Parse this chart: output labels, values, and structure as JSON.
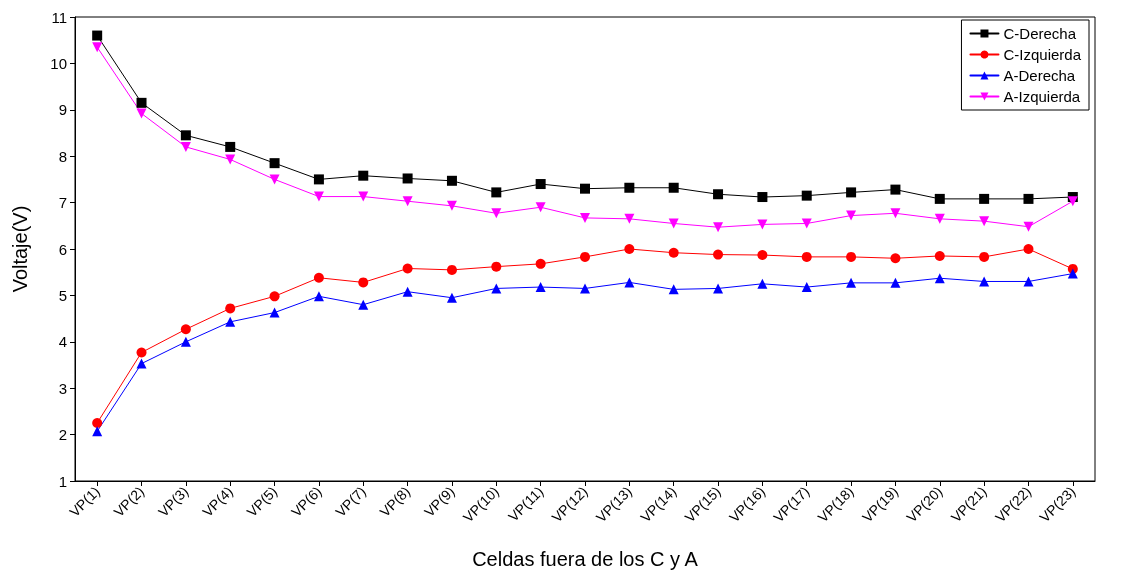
{
  "chart_data": {
    "type": "line",
    "xlabel": "Celdas fuera de los C y A",
    "ylabel": "Voltaje(V)",
    "categories": [
      "VP(1)",
      "VP(2)",
      "VP(3)",
      "VP(4)",
      "VP(5)",
      "VP(6)",
      "VP(7)",
      "VP(8)",
      "VP(9)",
      "VP(10)",
      "VP(11)",
      "VP(12)",
      "VP(13)",
      "VP(14)",
      "VP(15)",
      "VP(16)",
      "VP(17)",
      "VP(18)",
      "VP(19)",
      "VP(20)",
      "VP(21)",
      "VP(22)",
      "VP(23)"
    ],
    "ylim": [
      1,
      11
    ],
    "yticks": [
      1,
      2,
      3,
      4,
      5,
      6,
      7,
      8,
      9,
      10,
      11
    ],
    "grid": false,
    "legend": "top right",
    "line_style": "solid",
    "series": [
      {
        "name": "C-Derecha",
        "color": "#000000",
        "marker": "square",
        "values": [
          10.6,
          9.15,
          8.45,
          8.2,
          7.85,
          7.5,
          7.58,
          7.52,
          7.47,
          7.22,
          7.4,
          7.3,
          7.32,
          7.32,
          7.18,
          7.12,
          7.15,
          7.22,
          7.28,
          7.08,
          7.08,
          7.08,
          7.12
        ]
      },
      {
        "name": "C-Izquierda",
        "color": "#ff0000",
        "marker": "circle",
        "values": [
          2.25,
          3.77,
          4.27,
          4.72,
          4.98,
          5.38,
          5.28,
          5.58,
          5.55,
          5.62,
          5.68,
          5.83,
          6.0,
          5.92,
          5.88,
          5.87,
          5.83,
          5.83,
          5.8,
          5.85,
          5.83,
          6.0,
          5.57
        ]
      },
      {
        "name": "A-Derecha",
        "color": "#0000ff",
        "marker": "triangle",
        "values": [
          2.07,
          3.53,
          4.0,
          4.43,
          4.63,
          4.98,
          4.8,
          5.08,
          4.95,
          5.15,
          5.18,
          5.15,
          5.28,
          5.13,
          5.15,
          5.25,
          5.18,
          5.27,
          5.27,
          5.37,
          5.3,
          5.3,
          5.47
        ]
      },
      {
        "name": "A-Izquierda",
        "color": "#ff00ff",
        "marker": "triangle-down",
        "values": [
          10.35,
          8.92,
          8.2,
          7.93,
          7.5,
          7.13,
          7.13,
          7.03,
          6.93,
          6.77,
          6.9,
          6.67,
          6.65,
          6.55,
          6.47,
          6.53,
          6.55,
          6.72,
          6.77,
          6.65,
          6.6,
          6.48,
          7.03
        ]
      }
    ]
  }
}
